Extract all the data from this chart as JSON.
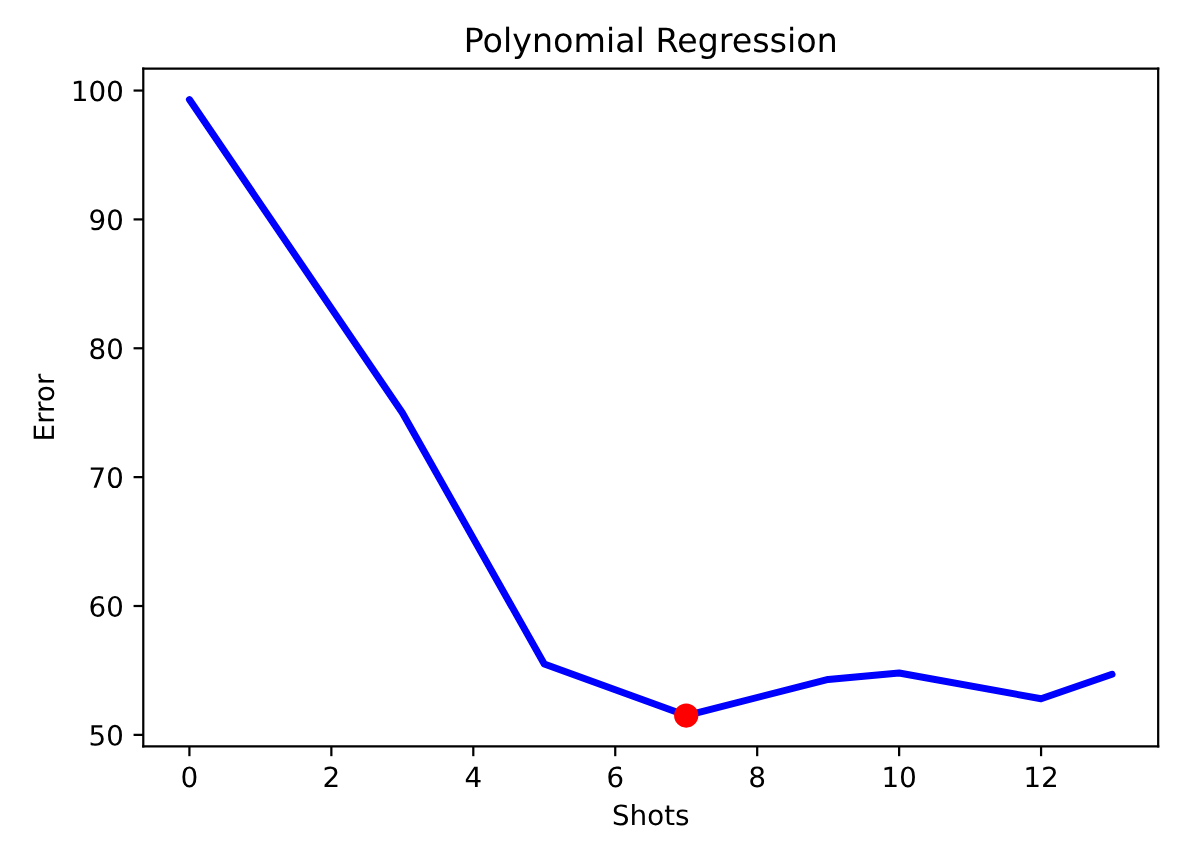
{
  "chart_data": {
    "type": "line",
    "title": "Polynomial Regression",
    "xlabel": "Shots",
    "ylabel": "Error",
    "series": [
      {
        "color": "#0000ff",
        "x": [
          0,
          3,
          5,
          7,
          9,
          10,
          12,
          13
        ],
        "values": [
          99.3,
          75,
          55.5,
          51.5,
          54.3,
          54.8,
          52.8,
          54.7
        ]
      },
      {
        "type": "scatter",
        "color": "#ff0000",
        "x": [
          7
        ],
        "values": [
          51.5
        ]
      }
    ],
    "xlim": [
      -0.65,
      13.65
    ],
    "ylim": [
      49.1,
      101.7
    ],
    "xticks": [
      0,
      2,
      4,
      6,
      8,
      10,
      12
    ],
    "yticks": [
      50,
      60,
      70,
      80,
      90,
      100
    ],
    "grid": false
  }
}
